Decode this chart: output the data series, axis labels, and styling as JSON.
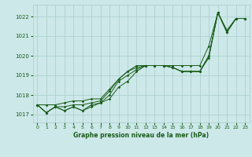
{
  "xlabel": "Graphe pression niveau de la mer (hPa)",
  "bg_color": "#cce8e8",
  "grid_color": "#aacccc",
  "line_color": "#1a5c1a",
  "x_ticks": [
    0,
    1,
    2,
    3,
    4,
    5,
    6,
    7,
    8,
    9,
    10,
    11,
    12,
    13,
    14,
    15,
    16,
    17,
    18,
    19,
    20,
    21,
    22,
    23
  ],
  "y_ticks": [
    1017,
    1018,
    1019,
    1020,
    1021,
    1022
  ],
  "ylim": [
    1016.6,
    1022.6
  ],
  "xlim": [
    -0.5,
    23.5
  ],
  "series": [
    [
      1017.5,
      1017.1,
      1017.4,
      1017.2,
      1017.4,
      1017.2,
      1017.4,
      1017.6,
      1017.8,
      1018.4,
      1018.7,
      1019.2,
      1019.5,
      1019.5,
      1019.5,
      1019.4,
      1019.2,
      1019.2,
      1019.2,
      1019.9,
      1022.2,
      1021.2,
      1021.9,
      1021.9
    ],
    [
      1017.5,
      1017.1,
      1017.4,
      1017.2,
      1017.4,
      1017.2,
      1017.5,
      1017.6,
      1018.0,
      1018.7,
      1019.0,
      1019.3,
      1019.5,
      1019.5,
      1019.5,
      1019.4,
      1019.2,
      1019.2,
      1019.2,
      1020.0,
      1022.2,
      1021.2,
      1021.9,
      1021.9
    ],
    [
      1017.5,
      1017.1,
      1017.4,
      1017.4,
      1017.5,
      1017.5,
      1017.6,
      1017.7,
      1018.2,
      1018.8,
      1019.2,
      1019.4,
      1019.5,
      1019.5,
      1019.5,
      1019.4,
      1019.2,
      1019.2,
      1019.2,
      1020.0,
      1022.2,
      1021.2,
      1021.9,
      1021.9
    ],
    [
      1017.5,
      1017.5,
      1017.5,
      1017.6,
      1017.7,
      1017.7,
      1017.8,
      1017.8,
      1018.3,
      1018.8,
      1019.2,
      1019.5,
      1019.5,
      1019.5,
      1019.5,
      1019.5,
      1019.5,
      1019.5,
      1019.5,
      1020.5,
      1022.2,
      1021.3,
      1021.9,
      1021.9
    ]
  ]
}
